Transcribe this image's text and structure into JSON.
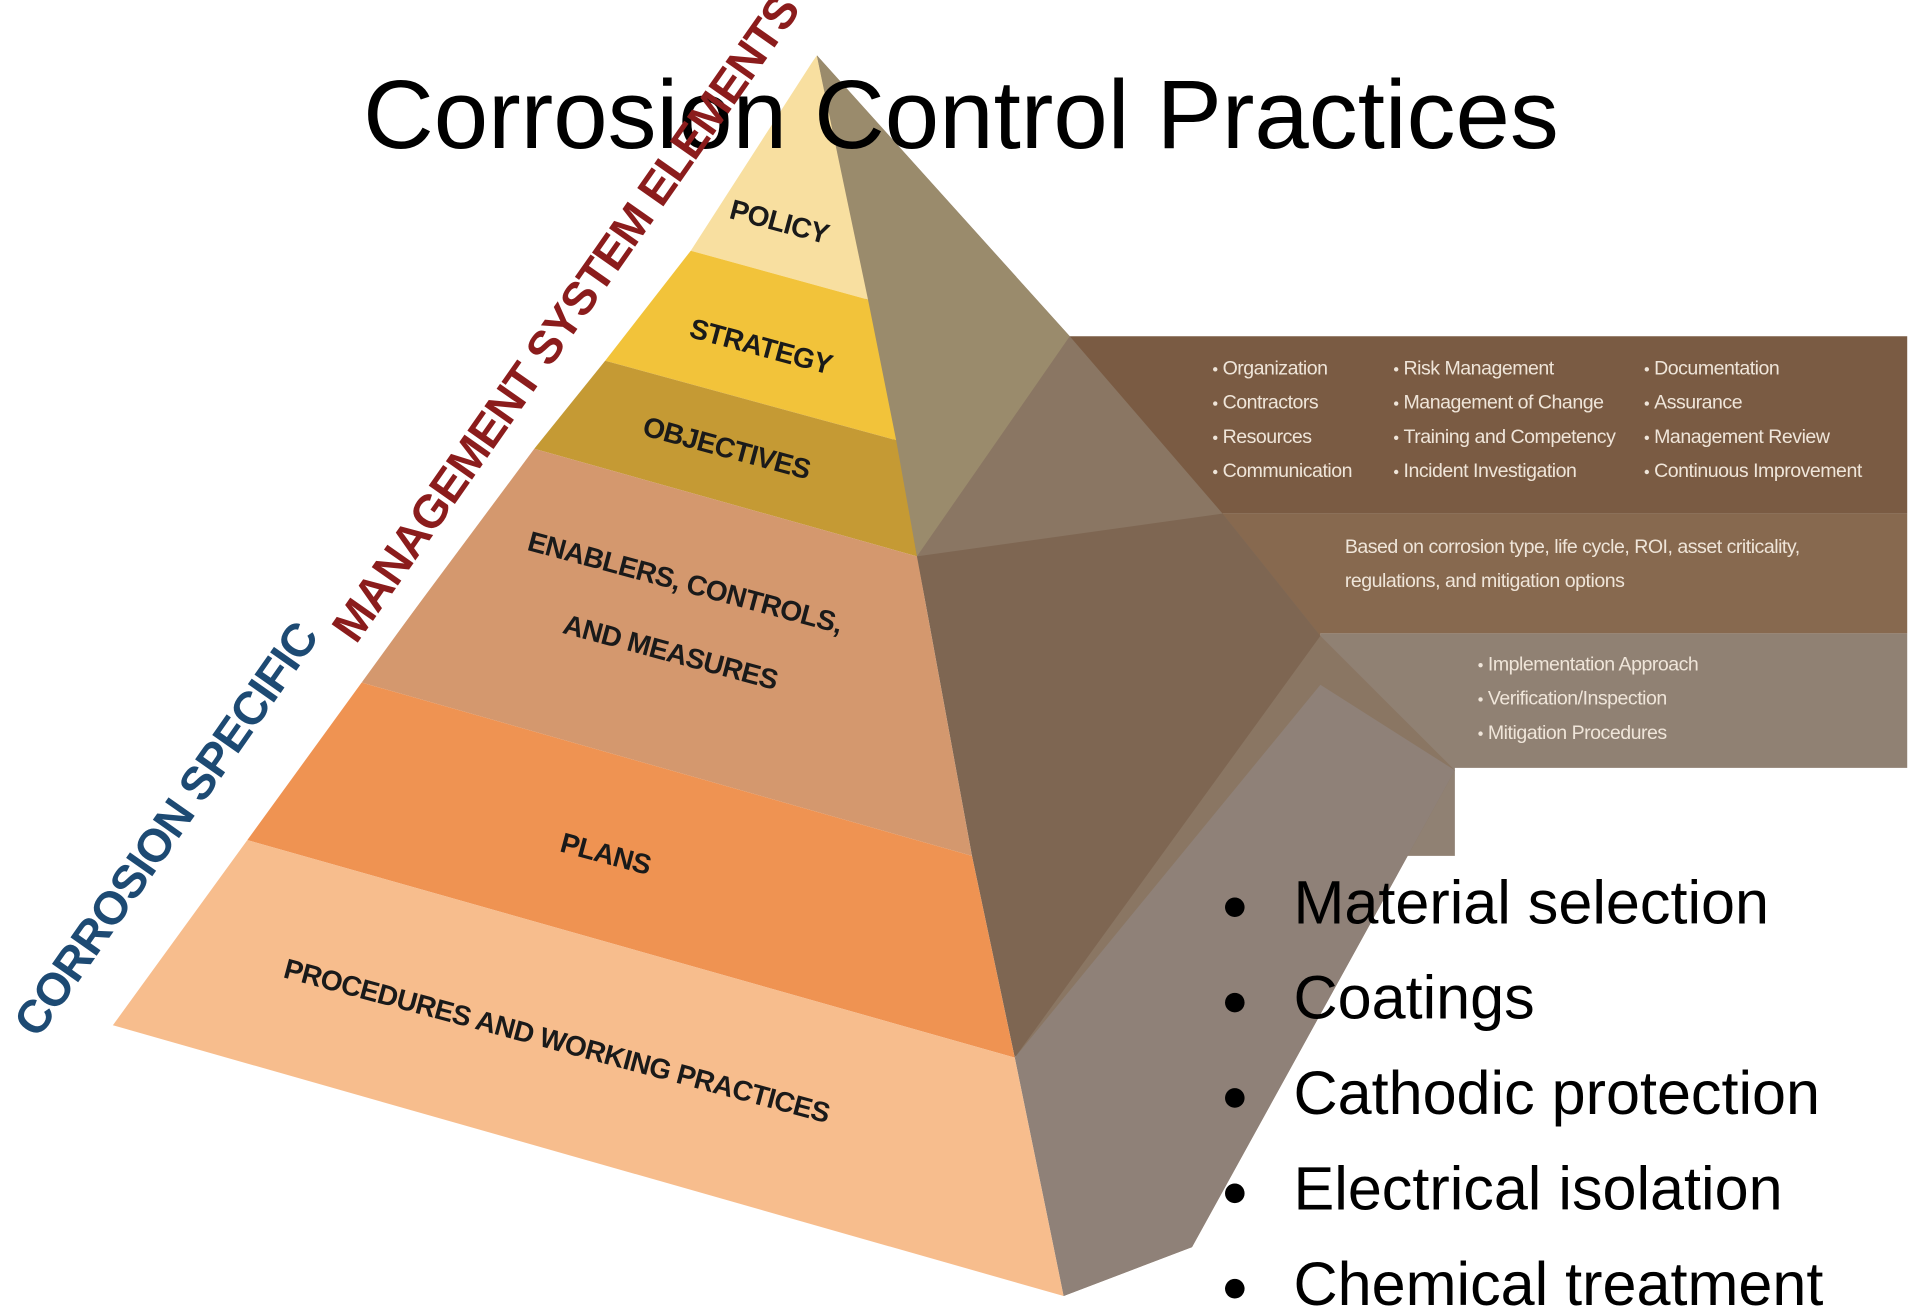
{
  "title": "Corrosion Control Practices",
  "side_labels": {
    "management": "MANAGEMENT SYSTEM ELEMENTS",
    "corrosion": "CORROSION SPECIFIC"
  },
  "pyramid": {
    "levels": [
      {
        "lines": [
          "POLICY"
        ]
      },
      {
        "lines": [
          "STRATEGY"
        ]
      },
      {
        "lines": [
          "OBJECTIVES"
        ]
      },
      {
        "lines": [
          "ENABLERS, CONTROLS,",
          "AND MEASURES"
        ]
      },
      {
        "lines": [
          "PLANS"
        ]
      },
      {
        "lines": [
          "PROCEDURES AND WORKING PRACTICES"
        ]
      }
    ]
  },
  "panels": {
    "management_items": [
      "Organization",
      "Contractors",
      "Resources",
      "Communication",
      "Risk Management",
      "Management of Change",
      "Training and Competency",
      "Incident Investigation",
      "Documentation",
      "Assurance",
      "Management Review",
      "Continuous Improvement"
    ],
    "objectives_note": [
      "Based on corrosion type, life cycle, ROI, asset criticality,",
      "regulations, and mitigation options"
    ],
    "procedure_items": [
      "Implementation Approach",
      "Verification/Inspection",
      "Mitigation Procedures"
    ]
  },
  "bullets": [
    "Material selection",
    "Coatings",
    "Cathodic protection",
    "Electrical isolation",
    "Chemical treatment"
  ]
}
